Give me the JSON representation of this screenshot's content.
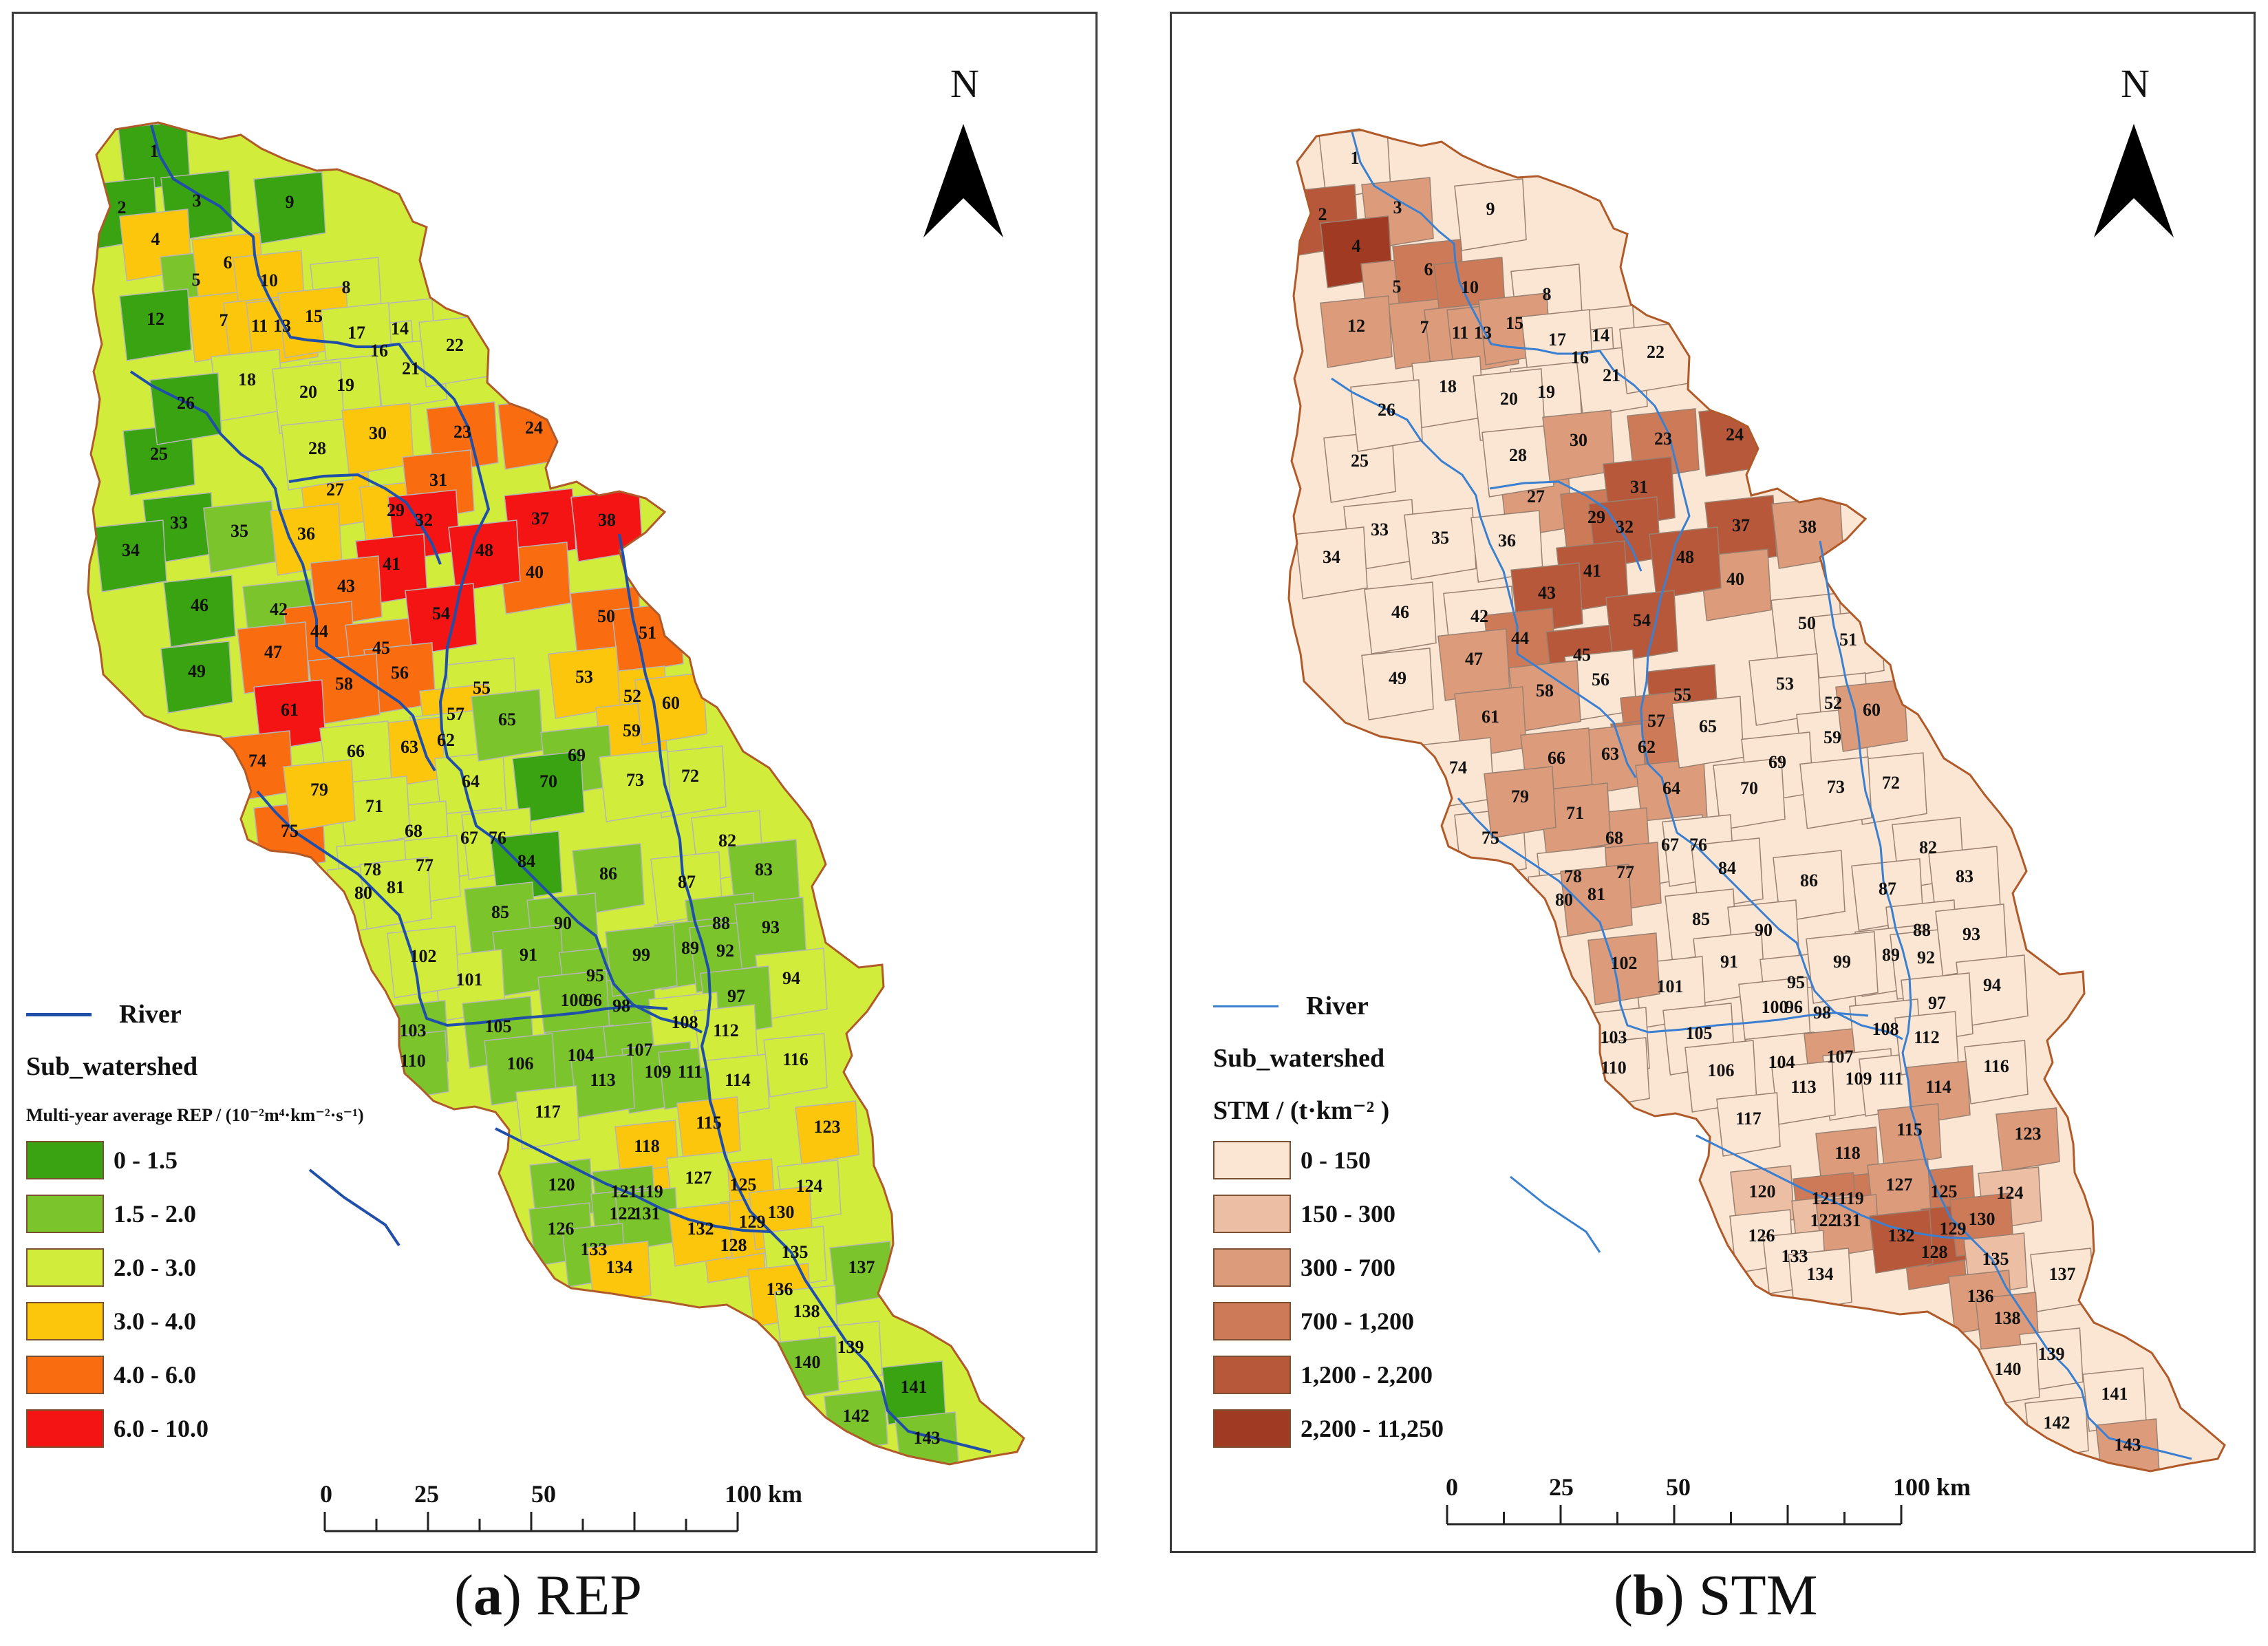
{
  "panels": [
    {
      "letter": "a",
      "caption": "REP",
      "north": "N",
      "legend": {
        "river": "River",
        "sub_watershed": "Sub_watershed",
        "title": "Multi-year average REP / (10⁻²m⁴·km⁻²·s⁻¹)",
        "classes": [
          {
            "label": "0 - 1.5",
            "color": "#3aa312"
          },
          {
            "label": "1.5 - 2.0",
            "color": "#7cc42c"
          },
          {
            "label": "2.0 - 3.0",
            "color": "#d2ec3c"
          },
          {
            "label": "3.0 - 4.0",
            "color": "#fcc60c"
          },
          {
            "label": "4.0 - 6.0",
            "color": "#fa6c10"
          },
          {
            "label": "6.0 - 10.0",
            "color": "#f41414"
          }
        ]
      },
      "scale": {
        "ticks": [
          "0",
          "25",
          "50",
          "100 km"
        ]
      }
    },
    {
      "letter": "b",
      "caption": "STM",
      "north": "N",
      "legend": {
        "river": "River",
        "sub_watershed": "Sub_watershed",
        "title": "STM / (t·km⁻² )",
        "classes": [
          {
            "label": "0 - 150",
            "color": "#fbe6d4"
          },
          {
            "label": "150 - 300",
            "color": "#ecbea4"
          },
          {
            "label": "300 - 700",
            "color": "#dc9c7c"
          },
          {
            "label": "700 - 1,200",
            "color": "#cc7a58"
          },
          {
            "label": "1,200 - 2,200",
            "color": "#b8583a"
          },
          {
            "label": "2,200 - 11,250",
            "color": "#a03a22"
          }
        ]
      },
      "scale": {
        "ticks": [
          "0",
          "25",
          "50",
          "100 km"
        ]
      }
    }
  ],
  "map": {
    "river_color": "#1f4fa8",
    "boundary_color": "#b05a2a",
    "subwatershed_ids": [
      "1",
      "2",
      "3",
      "4",
      "5",
      "6",
      "7",
      "8",
      "9",
      "10",
      "11",
      "12",
      "13",
      "14",
      "15",
      "16",
      "17",
      "18",
      "19",
      "20",
      "21",
      "22",
      "23",
      "24",
      "25",
      "26",
      "27",
      "28",
      "29",
      "30",
      "31",
      "32",
      "33",
      "34",
      "35",
      "36",
      "37",
      "38",
      "40",
      "41",
      "42",
      "43",
      "44",
      "45",
      "46",
      "47",
      "48",
      "49",
      "50",
      "51",
      "52",
      "53",
      "54",
      "55",
      "56",
      "57",
      "58",
      "59",
      "60",
      "61",
      "62",
      "63",
      "64",
      "65",
      "66",
      "67",
      "68",
      "69",
      "70",
      "71",
      "72",
      "73",
      "74",
      "75",
      "76",
      "77",
      "78",
      "79",
      "80",
      "81",
      "82",
      "83",
      "84",
      "85",
      "86",
      "87",
      "88",
      "89",
      "90",
      "91",
      "92",
      "93",
      "94",
      "95",
      "96",
      "97",
      "98",
      "99",
      "100",
      "101",
      "102",
      "103",
      "104",
      "105",
      "106",
      "107",
      "108",
      "109",
      "110",
      "111",
      "112",
      "113",
      "114",
      "115",
      "116",
      "117",
      "118",
      "119",
      "120",
      "121",
      "122",
      "123",
      "124",
      "125",
      "126",
      "127",
      "128",
      "129",
      "130",
      "131",
      "132",
      "133",
      "134",
      "135",
      "136",
      "137",
      "138",
      "139",
      "140",
      "141",
      "142",
      "143"
    ],
    "rep_class": {
      "1": 0,
      "2": 0,
      "3": 0,
      "9": 0,
      "12": 0,
      "26": 0,
      "25": 0,
      "34": 0,
      "33": 0,
      "46": 0,
      "49": 0,
      "70": 0,
      "84": 0,
      "141": 0,
      "143": 1,
      "5": 1,
      "35": 1,
      "42": 1,
      "65": 1,
      "69": 1,
      "86": 1,
      "85": 1,
      "90": 1,
      "91": 1,
      "99": 1,
      "83": 1,
      "93": 1,
      "88": 1,
      "92": 1,
      "89": 1,
      "95": 1,
      "96": 1,
      "100": 1,
      "98": 1,
      "103": 1,
      "105": 1,
      "106": 1,
      "104": 1,
      "107": 1,
      "113": 1,
      "109": 1,
      "111": 1,
      "110": 1,
      "120": 1,
      "126": 1,
      "121": 1,
      "122": 1,
      "131": 1,
      "133": 1,
      "140": 1,
      "142": 1,
      "137": 1,
      "97": 1,
      "8": 2,
      "14": 2,
      "16": 2,
      "17": 2,
      "18": 2,
      "19": 2,
      "20": 2,
      "21": 2,
      "22": 2,
      "28": 2,
      "55": 2,
      "62": 2,
      "64": 2,
      "66": 2,
      "67": 2,
      "68": 2,
      "71": 2,
      "72": 2,
      "73": 2,
      "76": 2,
      "77": 2,
      "78": 2,
      "80": 2,
      "81": 2,
      "82": 2,
      "87": 2,
      "94": 2,
      "101": 2,
      "102": 2,
      "108": 2,
      "112": 2,
      "114": 2,
      "116": 2,
      "117": 2,
      "124": 2,
      "127": 2,
      "135": 2,
      "138": 2,
      "139": 2,
      "4": 3,
      "6": 3,
      "7": 3,
      "10": 3,
      "11": 3,
      "13": 3,
      "15": 3,
      "27": 3,
      "29": 3,
      "30": 3,
      "36": 3,
      "52": 3,
      "53": 3,
      "57": 3,
      "59": 3,
      "60": 3,
      "63": 3,
      "79": 3,
      "115": 3,
      "118": 3,
      "119": 3,
      "123": 3,
      "125": 3,
      "128": 3,
      "129": 3,
      "130": 3,
      "132": 3,
      "134": 3,
      "136": 3,
      "23": 4,
      "24": 4,
      "31": 4,
      "40": 4,
      "43": 4,
      "44": 4,
      "45": 4,
      "47": 4,
      "50": 4,
      "51": 4,
      "56": 4,
      "58": 4,
      "74": 4,
      "75": 4,
      "32": 5,
      "37": 5,
      "38": 5,
      "41": 5,
      "48": 5,
      "54": 5,
      "61": 5
    },
    "stm_class": {
      "4": 5,
      "2": 4,
      "41": 4,
      "43": 4,
      "45": 4,
      "31": 4,
      "48": 4,
      "54": 4,
      "24": 4,
      "32": 4,
      "37": 4,
      "55": 4,
      "132": 4,
      "129": 4,
      "3": 2,
      "6": 3,
      "10": 3,
      "23": 3,
      "29": 3,
      "30": 2,
      "40": 2,
      "38": 2,
      "12": 2,
      "5": 2,
      "7": 2,
      "11": 2,
      "13": 2,
      "15": 2,
      "27": 2,
      "44": 3,
      "47": 2,
      "58": 2,
      "61": 2,
      "66": 2,
      "63": 2,
      "62": 3,
      "57": 3,
      "64": 2,
      "60": 2,
      "79": 2,
      "71": 2,
      "68": 2,
      "77": 2,
      "81": 2,
      "102": 2,
      "107": 2,
      "114": 2,
      "115": 2,
      "118": 2,
      "123": 2,
      "125": 3,
      "127": 2,
      "130": 3,
      "119": 3,
      "121": 3,
      "131": 2,
      "128": 3,
      "136": 2,
      "138": 2,
      "143": 2,
      "124": 1,
      "135": 1,
      "120": 1,
      "122": 1
    }
  }
}
